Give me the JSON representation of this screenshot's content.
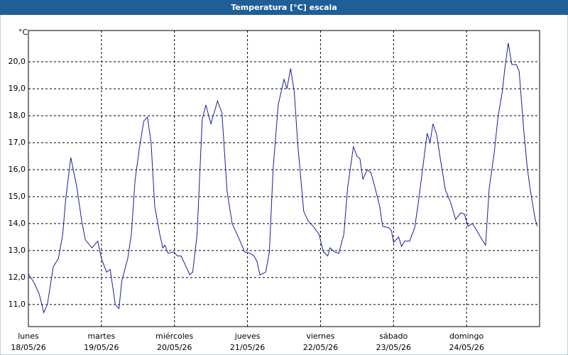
{
  "chart_data": {
    "type": "line",
    "title": "Temperatura [°C] escala",
    "y_unit": "°C",
    "x": [
      0,
      0.08,
      0.15,
      0.21,
      0.26,
      0.34,
      0.41,
      0.47,
      0.51,
      0.58,
      0.66,
      0.73,
      0.78,
      0.87,
      0.95,
      1.0,
      1.07,
      1.12,
      1.19,
      1.24,
      1.28,
      1.36,
      1.41,
      1.46,
      1.52,
      1.58,
      1.63,
      1.68,
      1.73,
      1.8,
      1.84,
      1.87,
      1.91,
      1.99,
      2.04,
      2.09,
      2.16,
      2.21,
      2.25,
      2.31,
      2.38,
      2.43,
      2.5,
      2.59,
      2.65,
      2.72,
      2.79,
      2.89,
      2.96,
      3.03,
      3.09,
      3.13,
      3.17,
      3.25,
      3.3,
      3.35,
      3.42,
      3.5,
      3.54,
      3.59,
      3.64,
      3.69,
      3.77,
      3.83,
      3.9,
      3.98,
      4.04,
      4.1,
      4.13,
      4.19,
      4.25,
      4.32,
      4.37,
      4.45,
      4.5,
      4.54,
      4.58,
      4.64,
      4.69,
      4.74,
      4.81,
      4.85,
      4.93,
      4.97,
      5.0,
      5.07,
      5.11,
      5.15,
      5.22,
      5.29,
      5.34,
      5.39,
      5.46,
      5.5,
      5.54,
      5.59,
      5.65,
      5.71,
      5.78,
      5.85,
      5.92,
      5.97,
      6.02,
      6.08,
      6.14,
      6.19,
      6.26,
      6.31,
      6.38,
      6.43,
      6.49,
      6.52,
      6.57,
      6.62,
      6.68,
      6.72,
      6.78,
      6.83,
      6.87,
      6.94,
      6.97
    ],
    "values": [
      12.13,
      11.8,
      11.37,
      10.7,
      11.0,
      12.4,
      12.7,
      13.6,
      14.9,
      16.45,
      15.4,
      14.1,
      13.4,
      13.1,
      13.35,
      12.7,
      12.2,
      12.3,
      11.0,
      10.85,
      11.9,
      12.7,
      13.6,
      15.6,
      16.8,
      17.8,
      17.95,
      17.0,
      14.65,
      13.6,
      13.1,
      13.2,
      12.9,
      12.95,
      12.8,
      12.8,
      12.4,
      12.1,
      12.2,
      13.6,
      17.85,
      18.4,
      17.7,
      18.55,
      18.1,
      15.2,
      14.0,
      13.4,
      12.95,
      12.9,
      12.8,
      12.6,
      12.1,
      12.2,
      12.95,
      16.0,
      18.4,
      19.35,
      19.0,
      19.75,
      18.9,
      16.9,
      14.45,
      14.1,
      13.9,
      13.6,
      12.95,
      12.8,
      13.1,
      12.95,
      12.9,
      13.6,
      15.3,
      16.85,
      16.5,
      16.4,
      15.65,
      16.0,
      15.9,
      15.4,
      14.65,
      13.9,
      13.85,
      13.75,
      13.3,
      13.5,
      13.15,
      13.35,
      13.35,
      13.85,
      14.8,
      15.85,
      17.35,
      17.0,
      17.7,
      17.3,
      16.25,
      15.25,
      14.8,
      14.15,
      14.4,
      14.35,
      13.9,
      14.0,
      13.75,
      13.5,
      13.2,
      15.3,
      16.65,
      17.95,
      18.9,
      19.65,
      20.7,
      19.9,
      19.9,
      19.65,
      17.55,
      16.1,
      15.3,
      14.15,
      13.9
    ],
    "color": "#1c1c9c",
    "xlim": [
      0,
      7
    ],
    "xticks": [
      {
        "value": 0,
        "label": "lunes"
      },
      {
        "value": 1,
        "label": "martes"
      },
      {
        "value": 2,
        "label": "miércoles"
      },
      {
        "value": 3,
        "label": "jueves"
      },
      {
        "value": 4,
        "label": "viernes"
      },
      {
        "value": 5,
        "label": "sábado"
      },
      {
        "value": 6,
        "label": "domingo"
      }
    ],
    "xtick_dates": [
      "18/05/26",
      "19/05/26",
      "20/05/26",
      "21/05/26",
      "22/05/26",
      "23/05/26",
      "24/05/26"
    ],
    "ylim": [
      10.18,
      21.16
    ],
    "yticks": [
      {
        "value": 11,
        "label": "11,0"
      },
      {
        "value": 12,
        "label": "12,0"
      },
      {
        "value": 13,
        "label": "13,0"
      },
      {
        "value": 14,
        "label": "14,0"
      },
      {
        "value": 15,
        "label": "15,0"
      },
      {
        "value": 16,
        "label": "16,0"
      },
      {
        "value": 17,
        "label": "17,0"
      },
      {
        "value": 18,
        "label": "18,0"
      },
      {
        "value": 19,
        "label": "19,0"
      },
      {
        "value": 20,
        "label": "20,0"
      }
    ],
    "grid": true
  }
}
